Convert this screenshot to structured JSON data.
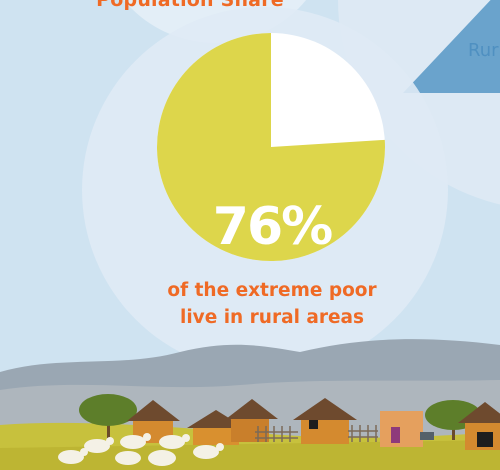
{
  "top_title": "Population Share",
  "rural_label": "Rur",
  "colors": {
    "sky": "#cfe3f1",
    "pie_rural": "#ddd64b",
    "pie_other": "#ffffff",
    "accent_orange": "#ef6a25",
    "accent_blue": "#4f90c1"
  },
  "pie": {
    "percent_label": "76%",
    "rural_fraction": 0.76
  },
  "caption": {
    "line1": "of the extreme poor",
    "line2": "live in rural areas"
  }
}
